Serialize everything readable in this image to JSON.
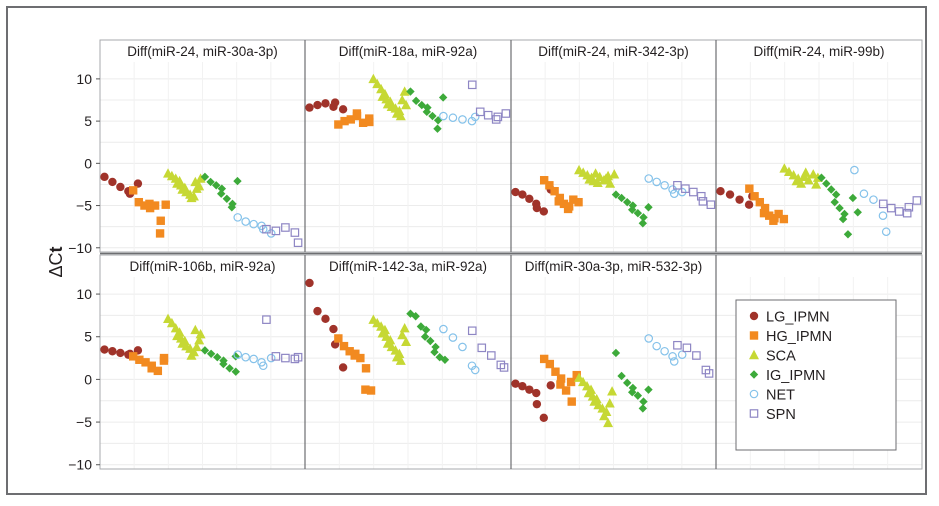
{
  "chart_data": {
    "type": "scatter",
    "ylabel_main": "ΔC",
    "ylabel_sub": "t",
    "ylim": [
      -10.5,
      12
    ],
    "yticks": [
      "10",
      "5",
      "0",
      "−5",
      "−10"
    ],
    "ytick_values": [
      10,
      5,
      0,
      -5,
      -10
    ],
    "grid": true,
    "legend_position": "bottom-right panel",
    "groups": [
      {
        "name": "LG_IPMN",
        "color": "#a0332a",
        "marker": "circle"
      },
      {
        "name": "HG_IPMN",
        "color": "#f28a20",
        "marker": "square"
      },
      {
        "name": "SCA",
        "color": "#c6d834",
        "marker": "triangle"
      },
      {
        "name": "IG_IPMN",
        "color": "#3daa3a",
        "marker": "diamond"
      },
      {
        "name": "NET",
        "color": "#85c2ea",
        "marker": "open-circle"
      },
      {
        "name": "SPN",
        "color": "#8e86c4",
        "marker": "open-square"
      }
    ],
    "panels": [
      {
        "title": "Diff(miR-24, miR-30a-3p)",
        "values": [
          [
            -1.6,
            -2.2,
            -2.8,
            -3.3,
            -3.6,
            -2.4
          ],
          [
            -3.2,
            -4.6,
            -5.0,
            -5.3,
            -4.8,
            -5.0,
            -6.8,
            -8.3,
            -4.9
          ],
          [
            -1.2,
            -1.5,
            -1.8,
            -2.1,
            -2.4,
            -2.6,
            -2.9,
            -3.1,
            -3.4,
            -3.7,
            -3.9,
            -4.1,
            -2.2,
            -2.7,
            -3.0,
            -1.8
          ],
          [
            -1.6,
            -2.2,
            -2.6,
            -3.0,
            -3.6,
            -4.2,
            -4.8,
            -5.2,
            -2.1
          ],
          [
            -6.4,
            -6.9,
            -7.2,
            -7.4,
            -7.8,
            -8.3
          ],
          [
            -7.8,
            -8.0,
            -7.6,
            -8.2,
            -9.4
          ]
        ]
      },
      {
        "title": "Diff(miR-18a, miR-92a)",
        "values": [
          [
            6.6,
            6.9,
            7.1,
            6.7,
            7.2,
            6.4
          ],
          [
            4.6,
            5.0,
            5.2,
            5.6,
            5.9,
            4.8,
            4.9,
            5.3
          ],
          [
            10.0,
            9.4,
            8.8,
            8.2,
            7.9,
            7.6,
            7.3,
            7.0,
            6.7,
            6.5,
            6.2,
            5.9,
            5.6,
            8.5,
            7.5,
            6.9
          ],
          [
            8.5,
            7.4,
            6.9,
            6.6,
            6.1,
            5.6,
            5.1,
            4.1,
            7.8
          ],
          [
            5.6,
            5.4,
            5.2,
            5.0,
            5.5
          ],
          [
            9.3,
            6.1,
            5.7,
            5.2,
            5.5,
            5.9
          ]
        ]
      },
      {
        "title": "Diff(miR-24, miR-342-3p)",
        "values": [
          [
            -3.4,
            -3.7,
            -4.2,
            -4.8,
            -5.3,
            -5.7,
            -3.1
          ],
          [
            -2.0,
            -2.6,
            -3.3,
            -4.1,
            -4.5,
            -4.8,
            -5.1,
            -5.4,
            -4.3,
            -4.6
          ],
          [
            -0.8,
            -1.1,
            -1.4,
            -1.7,
            -1.9,
            -2.1,
            -2.3,
            -1.2,
            -1.6,
            -2.0,
            -1.5,
            -1.8,
            -2.4,
            -1.3
          ],
          [
            -3.7,
            -4.1,
            -4.6,
            -5.0,
            -5.5,
            -5.9,
            -6.4,
            -7.1,
            -5.2
          ],
          [
            -1.8,
            -2.2,
            -2.6,
            -3.1,
            -3.6,
            -3.4
          ],
          [
            -2.6,
            -3.0,
            -3.4,
            -3.9,
            -4.5,
            -4.9
          ]
        ]
      },
      {
        "title": "Diff(miR-24, miR-99b)",
        "values": [
          [
            -3.3,
            -3.7,
            -4.3,
            -4.9,
            -3.9
          ],
          [
            -3.0,
            -3.9,
            -4.6,
            -5.3,
            -5.9,
            -6.2,
            -6.5,
            -6.8,
            -6.0,
            -6.6
          ],
          [
            -0.6,
            -1.0,
            -1.4,
            -1.8,
            -2.1,
            -2.4,
            -1.1,
            -1.6,
            -2.0,
            -1.3,
            -1.7,
            -2.5
          ],
          [
            -1.7,
            -2.4,
            -3.1,
            -3.7,
            -4.6,
            -5.3,
            -6.0,
            -6.6,
            -8.4,
            -4.1,
            -5.8
          ],
          [
            -0.8,
            -3.6,
            -4.3,
            -6.2,
            -8.1
          ],
          [
            -4.8,
            -5.3,
            -5.7,
            -5.9,
            -5.2,
            -4.4
          ]
        ]
      },
      {
        "title": "Diff(miR-106b, miR-92a)",
        "values": [
          [
            3.5,
            3.3,
            3.1,
            2.9,
            3.0,
            3.4
          ],
          [
            2.7,
            2.3,
            2.0,
            1.6,
            1.3,
            1.0,
            2.5,
            2.2
          ],
          [
            7.1,
            6.6,
            6.0,
            5.5,
            5.1,
            4.8,
            4.5,
            4.2,
            3.9,
            3.6,
            3.2,
            2.8,
            5.8,
            4.6,
            3.8,
            5.3
          ],
          [
            3.4,
            3.0,
            2.6,
            2.2,
            1.8,
            1.3,
            0.9,
            2.7
          ],
          [
            2.9,
            2.6,
            2.4,
            2.0,
            1.6,
            2.5
          ],
          [
            7.0,
            2.7,
            2.5,
            2.4,
            2.6
          ]
        ]
      },
      {
        "title": "Diff(miR-142-3a, miR-92a)",
        "values": [
          [
            11.3,
            8.0,
            7.1,
            5.9,
            4.1,
            1.4
          ],
          [
            4.8,
            3.9,
            3.3,
            3.0,
            2.8,
            2.5,
            1.3,
            -1.2,
            -1.3
          ],
          [
            7.0,
            6.6,
            6.2,
            5.8,
            5.4,
            5.0,
            4.6,
            4.2,
            3.8,
            3.4,
            3.0,
            2.6,
            2.2,
            6.0,
            5.2,
            4.4
          ],
          [
            7.7,
            7.4,
            6.2,
            5.8,
            5.0,
            4.5,
            3.8,
            3.2,
            2.6,
            2.3
          ],
          [
            5.9,
            4.9,
            3.8,
            1.6,
            1.1
          ],
          [
            5.7,
            3.7,
            2.8,
            1.7,
            1.4
          ]
        ]
      },
      {
        "title": "Diff(miR-30a-3p, miR-532-3p)",
        "values": [
          [
            -0.5,
            -0.8,
            -1.2,
            -1.6,
            -2.9,
            -4.5,
            -0.7
          ],
          [
            2.4,
            1.8,
            0.9,
            0.1,
            -0.6,
            -1.3,
            -2.6,
            -0.3,
            0.5
          ],
          [
            0.2,
            -0.3,
            -0.8,
            -1.2,
            -1.6,
            -2.0,
            -2.3,
            -2.6,
            -3.0,
            -3.4,
            -3.8,
            -4.3,
            -5.1,
            -1.4,
            -2.8
          ],
          [
            3.1,
            0.4,
            -0.4,
            -1.0,
            -1.5,
            -1.9,
            -2.6,
            -3.4,
            -1.2
          ],
          [
            4.8,
            3.9,
            3.3,
            2.7,
            2.1,
            2.9
          ],
          [
            4.0,
            3.7,
            2.8,
            1.1,
            0.7
          ]
        ]
      }
    ]
  }
}
